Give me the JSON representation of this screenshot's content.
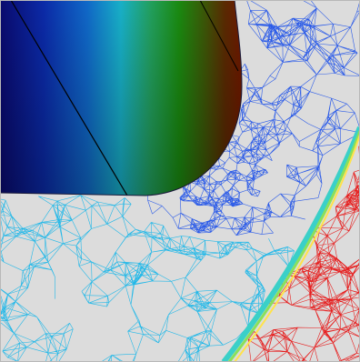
{
  "viewport": {
    "kind": "finite-element mesh visualization",
    "background_color": "#dcdcdc",
    "frame_color": "#b8b8b8"
  },
  "tool_body": {
    "colormap": [
      "#0a0a6e",
      "#0b2aa8",
      "#1068c8",
      "#18b0c8",
      "#22a060",
      "#1a8a10",
      "#3a5a08",
      "#5a2a02",
      "#6e1800"
    ],
    "edge_color": "#000000"
  },
  "mesh": {
    "region_blue_color": "#2a5ae8",
    "region_cyan_color": "#22b8e8",
    "region_red_color": "#e61e1e",
    "interface_band_colors": [
      "#ffe24a",
      "#8ae05a",
      "#3ad0c8"
    ]
  }
}
